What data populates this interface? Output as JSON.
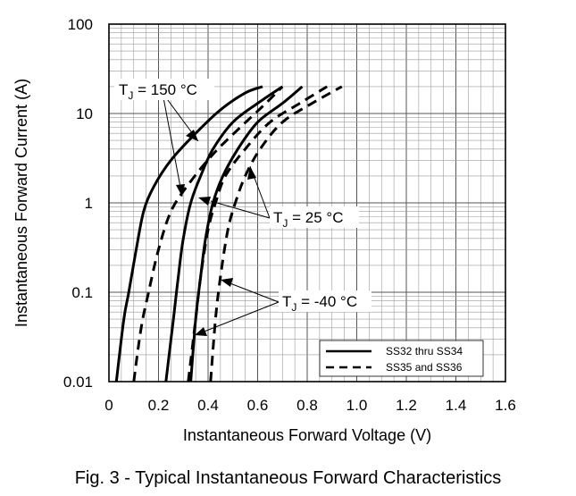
{
  "chart_data": {
    "type": "line",
    "title": "",
    "xlabel": "Instantaneous Forward Voltage (V)",
    "ylabel": "Instantaneous Forward Current (A)",
    "xlim": [
      0,
      1.6
    ],
    "ylim": [
      0.01,
      100
    ],
    "yscale": "log",
    "grid": true,
    "legend_position": "bottom-right",
    "x_ticks": [
      "0",
      "0.2",
      "0.4",
      "0.6",
      "0.8",
      "1.0",
      "1.2",
      "1.4",
      "1.6"
    ],
    "y_ticks": [
      "0.01",
      "0.1",
      "1",
      "10",
      "100"
    ],
    "legend": [
      {
        "label": "SS32 thru SS34",
        "style": "solid"
      },
      {
        "label": "SS35 and SS36",
        "style": "dashed"
      }
    ],
    "annotations": [
      {
        "text_main": "T",
        "text_sub": "J",
        "text_rest": " = 150 °C"
      },
      {
        "text_main": "T",
        "text_sub": "J",
        "text_rest": " = 25 °C"
      },
      {
        "text_main": "T",
        "text_sub": "J",
        "text_rest": " = -40 °C"
      }
    ],
    "series": [
      {
        "device": "SS32 thru SS34",
        "temperature": "150 °C",
        "style": "solid",
        "points": [
          [
            0.03,
            0.01
          ],
          [
            0.06,
            0.05
          ],
          [
            0.08,
            0.1
          ],
          [
            0.11,
            0.3
          ],
          [
            0.14,
            0.8
          ],
          [
            0.18,
            1.5
          ],
          [
            0.25,
            3
          ],
          [
            0.35,
            6
          ],
          [
            0.45,
            11
          ],
          [
            0.55,
            17
          ],
          [
            0.62,
            20
          ]
        ]
      },
      {
        "device": "SS35 and SS36",
        "temperature": "150 °C",
        "style": "dashed",
        "points": [
          [
            0.1,
            0.01
          ],
          [
            0.13,
            0.04
          ],
          [
            0.16,
            0.1
          ],
          [
            0.2,
            0.3
          ],
          [
            0.25,
            0.8
          ],
          [
            0.32,
            1.6
          ],
          [
            0.42,
            3.5
          ],
          [
            0.53,
            7
          ],
          [
            0.62,
            12
          ],
          [
            0.7,
            20
          ]
        ]
      },
      {
        "device": "SS32 thru SS34",
        "temperature": "25 °C",
        "style": "solid",
        "points": [
          [
            0.23,
            0.01
          ],
          [
            0.26,
            0.05
          ],
          [
            0.28,
            0.15
          ],
          [
            0.3,
            0.4
          ],
          [
            0.33,
            1
          ],
          [
            0.37,
            2
          ],
          [
            0.42,
            4
          ],
          [
            0.5,
            8
          ],
          [
            0.6,
            13
          ],
          [
            0.7,
            20
          ]
        ]
      },
      {
        "device": "SS35 and SS36",
        "temperature": "25 °C",
        "style": "dashed",
        "points": [
          [
            0.32,
            0.01
          ],
          [
            0.35,
            0.05
          ],
          [
            0.37,
            0.15
          ],
          [
            0.4,
            0.5
          ],
          [
            0.43,
            1
          ],
          [
            0.47,
            2
          ],
          [
            0.55,
            4
          ],
          [
            0.65,
            8
          ],
          [
            0.77,
            13
          ],
          [
            0.88,
            20
          ]
        ]
      },
      {
        "device": "SS32 thru SS34",
        "temperature": "-40 °C",
        "style": "solid",
        "points": [
          [
            0.33,
            0.01
          ],
          [
            0.35,
            0.05
          ],
          [
            0.37,
            0.15
          ],
          [
            0.39,
            0.4
          ],
          [
            0.42,
            1
          ],
          [
            0.46,
            2
          ],
          [
            0.52,
            4
          ],
          [
            0.6,
            8
          ],
          [
            0.7,
            13
          ],
          [
            0.78,
            20
          ]
        ]
      },
      {
        "device": "SS35 and SS36",
        "temperature": "-40 °C",
        "style": "dashed",
        "points": [
          [
            0.41,
            0.01
          ],
          [
            0.43,
            0.05
          ],
          [
            0.45,
            0.15
          ],
          [
            0.48,
            0.5
          ],
          [
            0.51,
            1
          ],
          [
            0.55,
            2
          ],
          [
            0.61,
            4
          ],
          [
            0.7,
            8
          ],
          [
            0.82,
            13
          ],
          [
            0.94,
            20
          ]
        ]
      }
    ]
  },
  "caption": "Fig. 3 - Typical Instantaneous Forward Characteristics"
}
